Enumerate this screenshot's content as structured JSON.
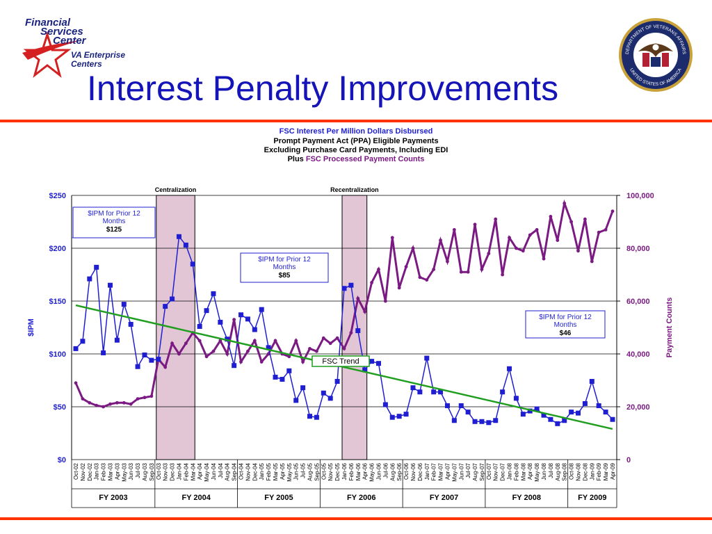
{
  "logo": {
    "line1": "Financial",
    "line2": "Services",
    "line3": "Center",
    "line4": "VA Enterprise",
    "line5": "Centers"
  },
  "seal": {
    "text_top": "DEPARTMENT OF VETERANS AFFAIRS",
    "text_bottom": "UNITED STATES OF AMERICA"
  },
  "slide": {
    "title": "Interest Penalty Improvements"
  },
  "colors": {
    "title": "#1414b8",
    "rule": "#ff3300",
    "ipm": "#1f1fd1",
    "counts": "#7a1a82",
    "trend": "#1f9e1f",
    "band": "#e3c6d6"
  },
  "chart_data": {
    "type": "line",
    "title": "FSC Interest Per Million Dollars Disbursed",
    "subtitle_lines": [
      "Prompt Payment Act (PPA) Eligible Payments",
      "Excluding Purchase Card Payments, Including EDI"
    ],
    "subtitle_plus": "Plus",
    "subtitle_plus_rest": "FSC Processed Payment Counts",
    "ylabel": "$IPM",
    "y2label": "Payment Counts",
    "ylim": [
      0,
      250
    ],
    "y2lim": [
      0,
      100000
    ],
    "yticks": [
      "$0",
      "$50",
      "$100",
      "$150",
      "$200",
      "$250"
    ],
    "y2ticks": [
      "0",
      "20,000",
      "40,000",
      "60,000",
      "80,000",
      "100,000"
    ],
    "grid": true,
    "x": [
      "Oct-02",
      "Nov-02",
      "Dec-02",
      "Jan-03",
      "Feb-03",
      "Mar-03",
      "Apr-03",
      "May-03",
      "Jun-03",
      "Jul-03",
      "Aug-03",
      "Sep-03",
      "Oct-03",
      "Nov-03",
      "Dec-03",
      "Jan-04",
      "Feb-04",
      "Mar-04",
      "Apr-04",
      "May-04",
      "Jun-04",
      "Jul-04",
      "Aug-04",
      "Sep-04",
      "Oct-04",
      "Nov-04",
      "Dec-04",
      "Jan-05",
      "Feb-05",
      "Mar-05",
      "Apr-05",
      "May-05",
      "Jun-05",
      "Jul-05",
      "Aug-05",
      "Sep-05",
      "Oct-05",
      "Nov-05",
      "Dec-05",
      "Jan-06",
      "Feb-06",
      "Mar-06",
      "Apr-06",
      "May-06",
      "Jun-06",
      "Jul-06",
      "Aug-06",
      "Sep-06",
      "Oct-06",
      "Nov-06",
      "Dec-06",
      "Jan-07",
      "Feb-07",
      "Mar-07",
      "Apr-07",
      "May-07",
      "Jun-07",
      "Jul-07",
      "Aug-07",
      "Sep-07",
      "Oct-07",
      "Nov-07",
      "Dec-07",
      "Jan-08",
      "Feb-08",
      "Mar-08",
      "Apr-08",
      "May-08",
      "Jun-08",
      "Jul-08",
      "Aug-08",
      "Sep-08",
      "Oct-08",
      "Nov-08",
      "Dec-08",
      "Jan-09",
      "Feb-09",
      "Mar-09",
      "Apr-09"
    ],
    "fiscal_years": [
      {
        "label": "FY 2003",
        "start": 0,
        "end": 11
      },
      {
        "label": "FY 2004",
        "start": 12,
        "end": 23
      },
      {
        "label": "FY 2005",
        "start": 24,
        "end": 35
      },
      {
        "label": "FY 2006",
        "start": 36,
        "end": 47
      },
      {
        "label": "FY 2007",
        "start": 48,
        "end": 59
      },
      {
        "label": "FY 2008",
        "start": 60,
        "end": 71
      },
      {
        "label": "FY 2009",
        "start": 72,
        "end": 78
      }
    ],
    "series": [
      {
        "axis": "left",
        "values": [
          105,
          112,
          171,
          182,
          101,
          165,
          113,
          147,
          128,
          88,
          99,
          94,
          95,
          145,
          152,
          211,
          203,
          185,
          126,
          141,
          157,
          130,
          114,
          89,
          137,
          133,
          123,
          142,
          106,
          78,
          76,
          84,
          56,
          68,
          41,
          40,
          63,
          58,
          74,
          162,
          165,
          122,
          85,
          93,
          91,
          52,
          40,
          41,
          43,
          68,
          64,
          96,
          64,
          64,
          51,
          37,
          51,
          45,
          36,
          36,
          35,
          37,
          64,
          86,
          58,
          43,
          46,
          48,
          42,
          38,
          34,
          37,
          45,
          44,
          53,
          74,
          51,
          45,
          38
        ],
        "markers": true
      },
      {
        "axis": "right",
        "values": [
          29000,
          23000,
          21500,
          20500,
          20000,
          21000,
          21500,
          21500,
          21000,
          23000,
          23500,
          24000,
          38000,
          35000,
          44000,
          40000,
          44000,
          48000,
          45000,
          39000,
          41000,
          45000,
          40000,
          53000,
          37000,
          41000,
          45000,
          37000,
          40000,
          45000,
          40000,
          39000,
          45000,
          37000,
          42000,
          41000,
          46000,
          44000,
          46000,
          42000,
          48000,
          61000,
          56000,
          67000,
          72000,
          60000,
          84000,
          65000,
          73000,
          80000,
          69000,
          68000,
          72000,
          83000,
          75000,
          87000,
          71000,
          71000,
          89000,
          72000,
          78000,
          91000,
          70000,
          84000,
          80000,
          79000,
          85000,
          87000,
          76000,
          92000,
          83000,
          97000,
          90000,
          79000,
          91000,
          75000,
          86000,
          87000,
          94000
        ],
        "markers": true
      }
    ],
    "trend": {
      "label": "FSC Trend",
      "ipm_start": 146,
      "ipm_end": 29
    },
    "bands": [
      {
        "label": "Centralization",
        "start_index": 12,
        "end_index": 17
      },
      {
        "label": "Recentralization",
        "start_index": 39,
        "end_index": 42
      }
    ],
    "annotations": [
      {
        "lines": [
          "$IPM for Prior 12",
          "Months"
        ],
        "value": "$125"
      },
      {
        "lines": [
          "$IPM for Prior 12",
          "Months"
        ],
        "value": "$85"
      },
      {
        "lines": [
          "$IPM for Prior 12",
          "Months"
        ],
        "value": "$46"
      }
    ]
  }
}
